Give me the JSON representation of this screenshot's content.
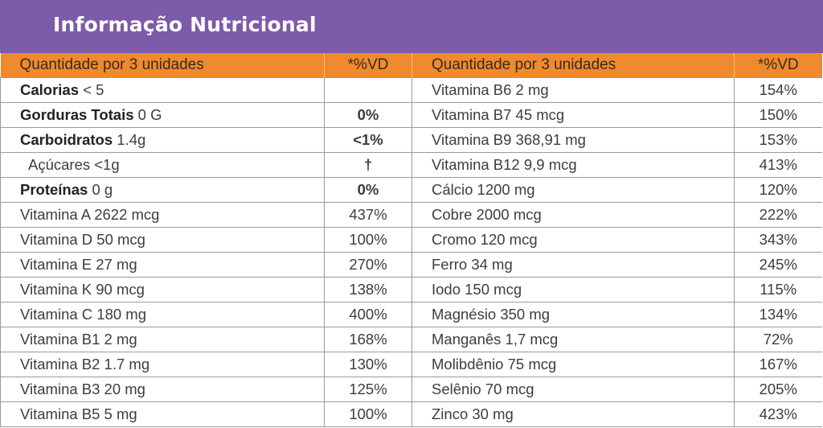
{
  "header": {
    "title": "Informação Nutricional"
  },
  "table": {
    "col_headers": [
      "Quantidade por 3 unidades",
      "*%VD",
      "Quantidade por 3 unidades",
      "*%VD"
    ],
    "left_rows": [
      {
        "name": "Calorias",
        "amount": "< 5",
        "vd": ""
      },
      {
        "name": "Gorduras Totais",
        "amount": "0 G",
        "vd": "0%"
      },
      {
        "name": "Carboidratos",
        "amount": "1.4g",
        "vd": "<1%"
      },
      {
        "label": "Açúcares <1g",
        "vd": "†"
      },
      {
        "name": "Proteínas",
        "amount": "0 g",
        "vd": "0%"
      },
      {
        "label": "Vitamina A 2622 mcg",
        "vd": "437%"
      },
      {
        "label": "Vitamina D 50 mcg",
        "vd": "100%"
      },
      {
        "label": "Vitamina E 27 mg",
        "vd": "270%"
      },
      {
        "label": "Vitamina K 90 mcg",
        "vd": "138%"
      },
      {
        "label": "Vitamina C 180 mg",
        "vd": "400%"
      },
      {
        "label": "Vitamina B1 2 mg",
        "vd": "168%"
      },
      {
        "label": "Vitamina B2 1.7 mg",
        "vd": "130%"
      },
      {
        "label": "Vitamina B3 20 mg",
        "vd": "125%"
      },
      {
        "label": "Vitamina B5 5 mg",
        "vd": "100%"
      }
    ],
    "right_rows": [
      {
        "label": "Vitamina B6 2 mg",
        "vd": "154%"
      },
      {
        "label": "Vitamina B7 45 mcg",
        "vd": "150%"
      },
      {
        "label": "Vitamina B9 368,91 mg",
        "vd": "153%"
      },
      {
        "label": "Vitamina B12 9,9 mcg",
        "vd": "413%"
      },
      {
        "label": "Cálcio 1200 mg",
        "vd": "120%"
      },
      {
        "label": "Cobre 2000 mcg",
        "vd": "222%"
      },
      {
        "label": "Cromo 120 mcg",
        "vd": "343%"
      },
      {
        "label": "Ferro 34 mg",
        "vd": "245%"
      },
      {
        "label": "Iodo 150 mcg",
        "vd": "115%"
      },
      {
        "label": "Magnésio 350 mg",
        "vd": "134%"
      },
      {
        "label": "Manganês 1,7 mcg",
        "vd": "72%"
      },
      {
        "label": "Molibdênio 75 mcg",
        "vd": "167%"
      },
      {
        "label": "Selênio 70 mcg",
        "vd": "205%"
      },
      {
        "label": "Zinco 30 mg",
        "vd": "423%"
      }
    ]
  },
  "colors": {
    "banner": "#7c5ba8",
    "header_row": "#f08a2e",
    "border": "#9a9a9a"
  }
}
